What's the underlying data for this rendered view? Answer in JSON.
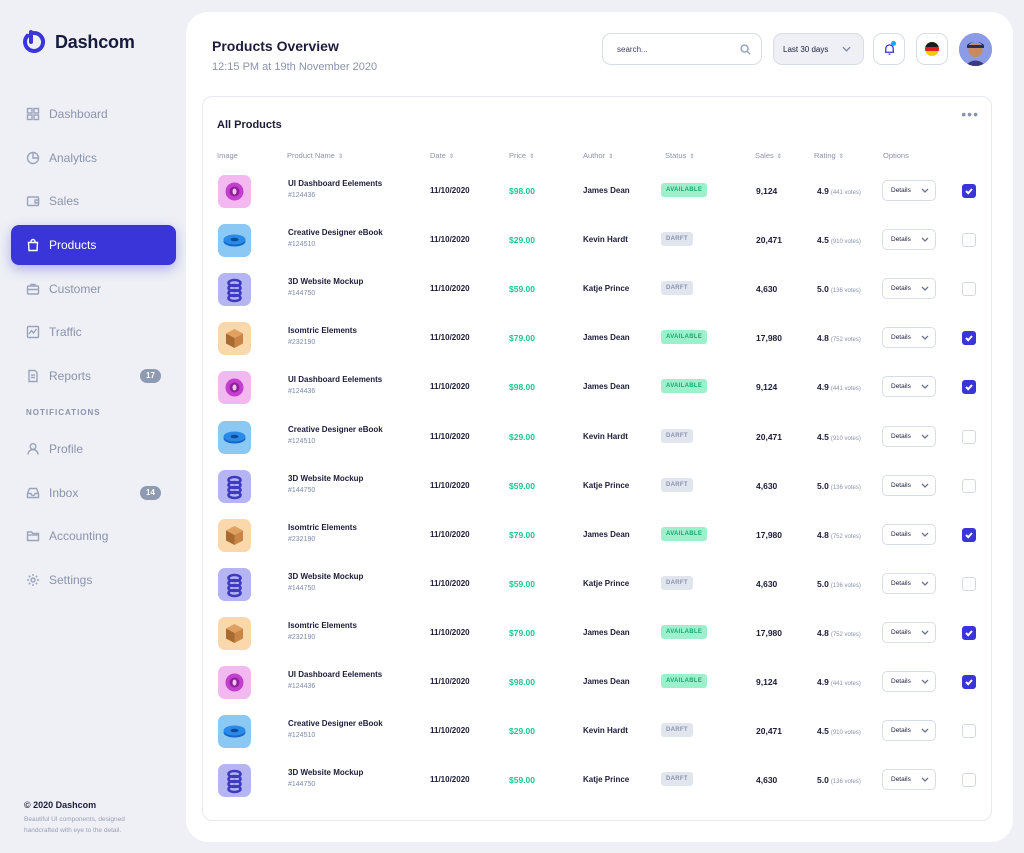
{
  "brand": {
    "name": "Dashcom"
  },
  "sidebar": {
    "items": [
      {
        "label": "Dashboard",
        "icon": "grid-icon"
      },
      {
        "label": "Analytics",
        "icon": "pie-chart-icon"
      },
      {
        "label": "Sales",
        "icon": "wallet-icon"
      },
      {
        "label": "Products",
        "icon": "shopping-bag-icon",
        "active": true
      },
      {
        "label": "Customer",
        "icon": "briefcase-icon"
      },
      {
        "label": "Traffic",
        "icon": "activity-icon"
      },
      {
        "label": "Reports",
        "icon": "document-icon",
        "badge": "17"
      }
    ],
    "section_label": "NOTIFICATIONS",
    "items2": [
      {
        "label": "Profile",
        "icon": "user-icon"
      },
      {
        "label": "Inbox",
        "icon": "inbox-icon",
        "badge": "14"
      },
      {
        "label": "Accounting",
        "icon": "folder-icon"
      },
      {
        "label": "Settings",
        "icon": "gear-icon"
      }
    ],
    "footer_title": "© 2020 Dashcom",
    "footer_text": "Beautiful UI components, designed handcrafted with eye to the detail."
  },
  "header": {
    "title": "Products Overview",
    "subtitle": "12:15 PM at 19th November 2020",
    "search_placeholder": "search...",
    "date_range": "Last 30 days"
  },
  "colors": {
    "accent": "#3a35d8",
    "price": "#1ec68e",
    "available_bg": "#9ef0cd",
    "draft_bg": "#e1e5ee"
  },
  "table": {
    "title": "All Products",
    "columns": [
      "Image",
      "Product Name",
      "Date",
      "Price",
      "Author",
      "Status",
      "Sales",
      "Rating",
      "Options"
    ],
    "option_label": "Details",
    "rows": [
      {
        "product": "UI Dashboard Eelements",
        "id": "#124436",
        "date": "11/10/2020",
        "price": "$98.00",
        "author": "James Dean",
        "status": "AVAILABLE",
        "sales": "9,124",
        "rating": "4.9",
        "votes": "(441 votes)",
        "checked": true,
        "thumb": "pink"
      },
      {
        "product": "Creative Designer eBook",
        "id": "#124510",
        "date": "11/10/2020",
        "price": "$29.00",
        "author": "Kevin Hardt",
        "status": "DARFT",
        "sales": "20,471",
        "rating": "4.5",
        "votes": "(910 votes)",
        "checked": false,
        "thumb": "blue"
      },
      {
        "product": "3D Website Mockup",
        "id": "#144750",
        "date": "11/10/2020",
        "price": "$59.00",
        "author": "Katje Prince",
        "status": "DARFT",
        "sales": "4,630",
        "rating": "5.0",
        "votes": "(136 votes)",
        "checked": false,
        "thumb": "purple"
      },
      {
        "product": "Isomtric Elements",
        "id": "#232190",
        "date": "11/10/2020",
        "price": "$79.00",
        "author": "James Dean",
        "status": "AVAILABLE",
        "sales": "17,980",
        "rating": "4.8",
        "votes": "(752 votes)",
        "checked": true,
        "thumb": "orange"
      },
      {
        "product": "UI Dashboard Eelements",
        "id": "#124436",
        "date": "11/10/2020",
        "price": "$98.00",
        "author": "James Dean",
        "status": "AVAILABLE",
        "sales": "9,124",
        "rating": "4.9",
        "votes": "(441 votes)",
        "checked": true,
        "thumb": "pink"
      },
      {
        "product": "Creative Designer eBook",
        "id": "#124510",
        "date": "11/10/2020",
        "price": "$29.00",
        "author": "Kevin Hardt",
        "status": "DARFT",
        "sales": "20,471",
        "rating": "4.5",
        "votes": "(910 votes)",
        "checked": false,
        "thumb": "blue"
      },
      {
        "product": "3D Website Mockup",
        "id": "#144750",
        "date": "11/10/2020",
        "price": "$59.00",
        "author": "Katje Prince",
        "status": "DARFT",
        "sales": "4,630",
        "rating": "5.0",
        "votes": "(136 votes)",
        "checked": false,
        "thumb": "purple"
      },
      {
        "product": "Isomtric Elements",
        "id": "#232190",
        "date": "11/10/2020",
        "price": "$79.00",
        "author": "James Dean",
        "status": "AVAILABLE",
        "sales": "17,980",
        "rating": "4.8",
        "votes": "(752 votes)",
        "checked": true,
        "thumb": "orange"
      },
      {
        "product": "3D Website Mockup",
        "id": "#144750",
        "date": "11/10/2020",
        "price": "$59.00",
        "author": "Katje Prince",
        "status": "DARFT",
        "sales": "4,630",
        "rating": "5.0",
        "votes": "(136 votes)",
        "checked": false,
        "thumb": "purple"
      },
      {
        "product": "Isomtric Elements",
        "id": "#232190",
        "date": "11/10/2020",
        "price": "$79.00",
        "author": "James Dean",
        "status": "AVAILABLE",
        "sales": "17,980",
        "rating": "4.8",
        "votes": "(752 votes)",
        "checked": true,
        "thumb": "orange"
      },
      {
        "product": "UI Dashboard Eelements",
        "id": "#124436",
        "date": "11/10/2020",
        "price": "$98.00",
        "author": "James Dean",
        "status": "AVAILABLE",
        "sales": "9,124",
        "rating": "4.9",
        "votes": "(441 votes)",
        "checked": true,
        "thumb": "pink"
      },
      {
        "product": "Creative Designer eBook",
        "id": "#124510",
        "date": "11/10/2020",
        "price": "$29.00",
        "author": "Kevin Hardt",
        "status": "DARFT",
        "sales": "20,471",
        "rating": "4.5",
        "votes": "(910 votes)",
        "checked": false,
        "thumb": "blue"
      },
      {
        "product": "3D Website Mockup",
        "id": "#144750",
        "date": "11/10/2020",
        "price": "$59.00",
        "author": "Katje Prince",
        "status": "DARFT",
        "sales": "4,630",
        "rating": "5.0",
        "votes": "(136 votes)",
        "checked": false,
        "thumb": "purple"
      }
    ]
  }
}
